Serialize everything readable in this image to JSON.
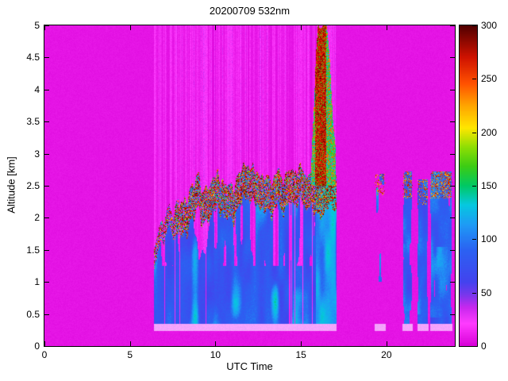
{
  "chart_data": {
    "type": "heatmap",
    "title": "20200709 532nm",
    "xlabel": "UTC Time",
    "ylabel": "Altitude [km]",
    "x_range": [
      0,
      24
    ],
    "y_range": [
      0,
      5
    ],
    "x_ticks": [
      0,
      5,
      10,
      15,
      20
    ],
    "y_ticks": [
      0,
      0.5,
      1,
      1.5,
      2,
      2.5,
      3,
      3.5,
      4,
      4.5,
      5
    ],
    "colorbar": {
      "range": [
        0,
        300
      ],
      "ticks": [
        0,
        50,
        100,
        150,
        200,
        250,
        300
      ],
      "colormap_stops": [
        [
          0.0,
          "#d800d8"
        ],
        [
          0.07,
          "#ff3cff"
        ],
        [
          0.12,
          "#c828ee"
        ],
        [
          0.16,
          "#7837ec"
        ],
        [
          0.2,
          "#4343ee"
        ],
        [
          0.3,
          "#2b62f2"
        ],
        [
          0.38,
          "#1e9cf5"
        ],
        [
          0.44,
          "#06c8e0"
        ],
        [
          0.5,
          "#00c864"
        ],
        [
          0.56,
          "#3ccc14"
        ],
        [
          0.62,
          "#8ede04"
        ],
        [
          0.68,
          "#ffe600"
        ],
        [
          0.75,
          "#ffa400"
        ],
        [
          0.82,
          "#ff5000"
        ],
        [
          0.9,
          "#cf1200"
        ],
        [
          1.0,
          "#500000"
        ]
      ]
    },
    "noise_seed": 4.7,
    "background_value": 5,
    "streak_value_range": [
      4,
      34
    ],
    "observation_windows": [
      [
        6.42,
        17.08
      ]
    ],
    "dropout_column_ranges": [
      [
        6.42,
        9.6
      ],
      [
        13.1,
        15.7
      ]
    ],
    "surface_band": {
      "z_km": [
        0.23,
        0.345
      ],
      "value": 22,
      "mix_white": 0.55
    },
    "boundary_layer": {
      "base_km": 0.35,
      "mixed_layer_value_range": [
        56,
        100
      ],
      "canopy_value_range": [
        120,
        300
      ],
      "canopy_thickness_km": 0.52,
      "early_canopy_thickness_km": 0.32,
      "canopy_density": 0.6,
      "early_canopy_density": 0.42,
      "early_period_end": 7.6,
      "top_km": [
        [
          6.42,
          1.5
        ],
        [
          6.7,
          1.85
        ],
        [
          7.0,
          1.9
        ],
        [
          7.3,
          2.2
        ],
        [
          7.6,
          2.05
        ],
        [
          8.0,
          2.35
        ],
        [
          8.3,
          2.2
        ],
        [
          8.6,
          2.45
        ],
        [
          9.0,
          2.6
        ],
        [
          9.3,
          2.4
        ],
        [
          9.6,
          2.55
        ],
        [
          10.0,
          2.7
        ],
        [
          10.3,
          2.55
        ],
        [
          10.6,
          2.65
        ],
        [
          11.0,
          2.45
        ],
        [
          11.3,
          2.6
        ],
        [
          11.6,
          2.8
        ],
        [
          12.0,
          2.7
        ],
        [
          12.3,
          2.8
        ],
        [
          12.6,
          2.6
        ],
        [
          13.0,
          2.65
        ],
        [
          13.3,
          2.5
        ],
        [
          13.6,
          2.7
        ],
        [
          14.0,
          2.6
        ],
        [
          14.3,
          2.75
        ],
        [
          14.6,
          2.65
        ],
        [
          15.0,
          2.85
        ],
        [
          15.3,
          2.7
        ],
        [
          15.6,
          2.6
        ],
        [
          16.0,
          2.55
        ],
        [
          16.5,
          2.6
        ],
        [
          17.08,
          2.75
        ]
      ]
    },
    "deep_cloud": {
      "t_range": [
        15.62,
        17.05
      ],
      "core_t": [
        15.85,
        16.5
      ],
      "base_km": 2.5,
      "core_value_range": [
        250,
        300
      ],
      "edge_value_range": [
        90,
        185
      ],
      "subcloud_value_range": [
        85,
        140
      ],
      "top_profile": [
        [
          15.62,
          2.9
        ],
        [
          15.75,
          3.7
        ],
        [
          15.88,
          4.5
        ],
        [
          16.0,
          5.0
        ],
        [
          16.5,
          5.0
        ],
        [
          16.68,
          4.5
        ],
        [
          16.88,
          3.5
        ],
        [
          17.05,
          3.0
        ]
      ]
    },
    "isolated_features": [
      {
        "t_range": [
          19.32,
          19.95
        ],
        "z_range": [
          1.0,
          2.68
        ],
        "coverage": 0.42,
        "value_range": [
          60,
          135
        ],
        "speck_band": [
          2.35,
          2.68
        ],
        "speck_density": 0.35,
        "surface_band": true
      },
      {
        "t_range": [
          20.95,
          21.52
        ],
        "z_range": [
          0.35,
          2.72
        ],
        "coverage": 0.85,
        "value_range": [
          55,
          100
        ],
        "cyan_patch": {
          "z": [
            0.55,
            1.6
          ],
          "boost": 45
        },
        "speck_band": [
          2.3,
          2.72
        ],
        "speck_density": 0.5,
        "surface_band": true
      },
      {
        "t_range": [
          21.8,
          22.45
        ],
        "z_range": [
          0.35,
          2.6
        ],
        "coverage": 0.8,
        "value_range": [
          55,
          100
        ],
        "cyan_patch": {
          "z": [
            0.5,
            1.5
          ],
          "boost": 40
        },
        "speck_band": [
          2.2,
          2.6
        ],
        "speck_density": 0.4,
        "surface_band": true
      },
      {
        "t_range": [
          22.55,
          23.85
        ],
        "z_range": [
          0.35,
          2.72
        ],
        "coverage": 0.9,
        "value_range": [
          55,
          105
        ],
        "cyan_patch": {
          "z": [
            0.45,
            1.55
          ],
          "boost": 55
        },
        "speck_band": [
          2.3,
          2.72
        ],
        "speck_density": 0.5,
        "surface_band": true
      }
    ]
  }
}
